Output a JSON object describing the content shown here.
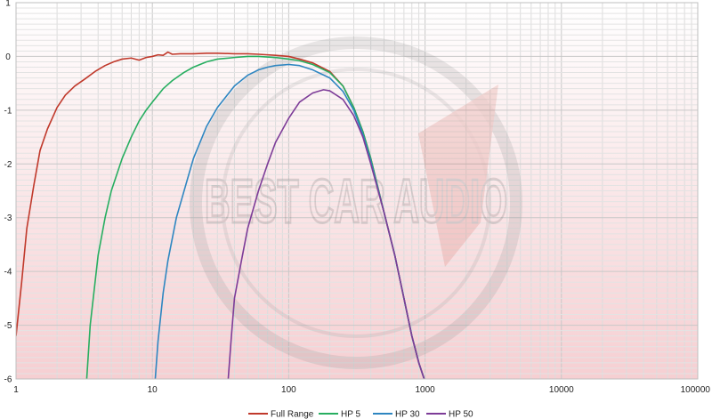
{
  "chart_data": {
    "type": "line",
    "title": "",
    "xlabel": "",
    "ylabel": "",
    "x_scale": "log",
    "xlim": [
      1,
      100000
    ],
    "ylim": [
      -6,
      1
    ],
    "x_ticks": [
      1,
      10,
      100,
      1000,
      10000,
      100000
    ],
    "x_tick_labels": [
      "1",
      "10",
      "100",
      "1000",
      "10000",
      "100000"
    ],
    "y_ticks": [
      1,
      0,
      -1,
      -2,
      -3,
      -4,
      -5,
      -6
    ],
    "y_tick_labels": [
      "1",
      "0",
      "-1",
      "-2",
      "-3",
      "-4",
      "-5",
      "-6"
    ],
    "grid": true,
    "legend_position": "bottom",
    "background_gradient": [
      "#ffffff",
      "#f6cfd2"
    ],
    "watermark_text": "BEST CAR AUDIO",
    "series": [
      {
        "name": "Full Range",
        "color": "#c0392b",
        "points": [
          [
            1,
            -5.2
          ],
          [
            1.1,
            -4.2
          ],
          [
            1.2,
            -3.2
          ],
          [
            1.35,
            -2.4
          ],
          [
            1.5,
            -1.75
          ],
          [
            1.7,
            -1.35
          ],
          [
            2,
            -0.95
          ],
          [
            2.3,
            -0.72
          ],
          [
            2.7,
            -0.55
          ],
          [
            3.2,
            -0.42
          ],
          [
            3.8,
            -0.28
          ],
          [
            4.5,
            -0.17
          ],
          [
            5.2,
            -0.1
          ],
          [
            6,
            -0.05
          ],
          [
            7,
            -0.03
          ],
          [
            8,
            -0.07
          ],
          [
            9,
            -0.02
          ],
          [
            10,
            0.0
          ],
          [
            11,
            0.03
          ],
          [
            12,
            0.02
          ],
          [
            13,
            0.08
          ],
          [
            14,
            0.04
          ],
          [
            16,
            0.05
          ],
          [
            20,
            0.05
          ],
          [
            25,
            0.06
          ],
          [
            30,
            0.06
          ],
          [
            40,
            0.05
          ],
          [
            50,
            0.05
          ],
          [
            60,
            0.04
          ],
          [
            70,
            0.03
          ],
          [
            80,
            0.02
          ],
          [
            100,
            0.0
          ],
          [
            120,
            -0.05
          ],
          [
            150,
            -0.12
          ],
          [
            200,
            -0.28
          ],
          [
            250,
            -0.55
          ],
          [
            300,
            -0.95
          ],
          [
            350,
            -1.4
          ],
          [
            400,
            -1.9
          ],
          [
            500,
            -2.9
          ],
          [
            600,
            -3.7
          ],
          [
            700,
            -4.5
          ],
          [
            800,
            -5.2
          ],
          [
            900,
            -5.7
          ],
          [
            1000,
            -6.05
          ]
        ]
      },
      {
        "name": "HP 5",
        "color": "#27ae60",
        "points": [
          [
            3.3,
            -6.0
          ],
          [
            3.5,
            -5.0
          ],
          [
            4,
            -3.7
          ],
          [
            4.5,
            -3.0
          ],
          [
            5,
            -2.5
          ],
          [
            6,
            -1.9
          ],
          [
            7,
            -1.5
          ],
          [
            8,
            -1.2
          ],
          [
            9,
            -1.0
          ],
          [
            10,
            -0.85
          ],
          [
            12,
            -0.6
          ],
          [
            14,
            -0.45
          ],
          [
            17,
            -0.3
          ],
          [
            20,
            -0.2
          ],
          [
            25,
            -0.1
          ],
          [
            30,
            -0.05
          ],
          [
            40,
            -0.02
          ],
          [
            50,
            0.0
          ],
          [
            60,
            0.0
          ],
          [
            80,
            -0.02
          ],
          [
            100,
            -0.05
          ],
          [
            120,
            -0.08
          ],
          [
            150,
            -0.15
          ],
          [
            200,
            -0.3
          ],
          [
            250,
            -0.55
          ],
          [
            300,
            -0.95
          ],
          [
            350,
            -1.4
          ],
          [
            400,
            -1.9
          ],
          [
            500,
            -2.9
          ],
          [
            600,
            -3.7
          ],
          [
            700,
            -4.5
          ],
          [
            800,
            -5.2
          ],
          [
            900,
            -5.7
          ],
          [
            1000,
            -6.05
          ]
        ]
      },
      {
        "name": "HP 30",
        "color": "#2e86c1",
        "points": [
          [
            10.5,
            -6.0
          ],
          [
            11,
            -5.3
          ],
          [
            12,
            -4.4
          ],
          [
            13,
            -3.8
          ],
          [
            15,
            -3.0
          ],
          [
            18,
            -2.3
          ],
          [
            20,
            -1.9
          ],
          [
            25,
            -1.3
          ],
          [
            30,
            -0.95
          ],
          [
            40,
            -0.55
          ],
          [
            50,
            -0.35
          ],
          [
            60,
            -0.25
          ],
          [
            70,
            -0.2
          ],
          [
            80,
            -0.17
          ],
          [
            100,
            -0.15
          ],
          [
            120,
            -0.17
          ],
          [
            150,
            -0.25
          ],
          [
            200,
            -0.4
          ],
          [
            250,
            -0.65
          ],
          [
            300,
            -1.0
          ],
          [
            350,
            -1.45
          ],
          [
            400,
            -1.95
          ],
          [
            500,
            -2.9
          ],
          [
            600,
            -3.7
          ],
          [
            700,
            -4.5
          ],
          [
            800,
            -5.2
          ],
          [
            900,
            -5.7
          ],
          [
            1000,
            -6.05
          ]
        ]
      },
      {
        "name": "HP 50",
        "color": "#7d3c98",
        "points": [
          [
            36,
            -6.0
          ],
          [
            38,
            -5.2
          ],
          [
            40,
            -4.5
          ],
          [
            45,
            -3.8
          ],
          [
            50,
            -3.2
          ],
          [
            60,
            -2.5
          ],
          [
            70,
            -2.0
          ],
          [
            80,
            -1.6
          ],
          [
            100,
            -1.15
          ],
          [
            120,
            -0.85
          ],
          [
            150,
            -0.68
          ],
          [
            180,
            -0.62
          ],
          [
            200,
            -0.64
          ],
          [
            250,
            -0.8
          ],
          [
            300,
            -1.1
          ],
          [
            350,
            -1.5
          ],
          [
            400,
            -2.0
          ],
          [
            500,
            -2.9
          ],
          [
            600,
            -3.7
          ],
          [
            700,
            -4.5
          ],
          [
            800,
            -5.2
          ],
          [
            900,
            -5.7
          ],
          [
            1000,
            -6.05
          ]
        ]
      }
    ]
  }
}
